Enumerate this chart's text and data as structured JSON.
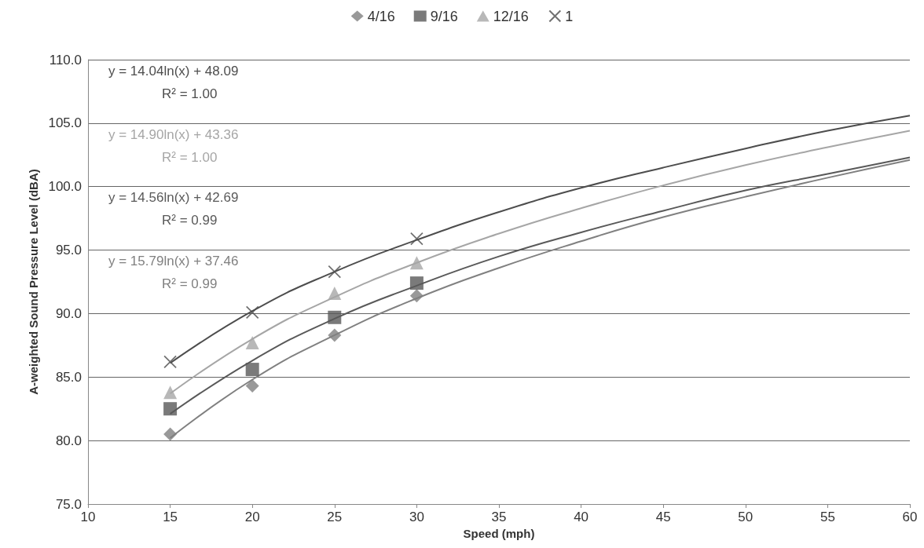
{
  "chart_data": {
    "type": "scatter",
    "xlabel": "Speed (mph)",
    "ylabel": "A-weighted Sound Pressure Level (dBA)",
    "x": [
      15,
      20,
      25,
      30
    ],
    "series": [
      {
        "name": "4/16",
        "color": "#808080",
        "marker": "diamond",
        "values": [
          80.5,
          84.3,
          88.3,
          91.4
        ]
      },
      {
        "name": "9/16",
        "color": "#595959",
        "marker": "square",
        "values": [
          82.5,
          85.6,
          89.7,
          92.4
        ]
      },
      {
        "name": "12/16",
        "color": "#a6a6a6",
        "marker": "triangle",
        "values": [
          83.8,
          87.7,
          91.6,
          94.0
        ]
      },
      {
        "name": "1",
        "color": "#4d4d4d",
        "marker": "cross",
        "values": [
          86.2,
          90.1,
          93.3,
          95.9
        ]
      },
      {
        "type": "line",
        "color": "#808080",
        "marker": "none",
        "line_style": "solid",
        "x": [
          15,
          20,
          25,
          30,
          35,
          40,
          45,
          50,
          55,
          60
        ],
        "values": [
          80.2,
          84.8,
          88.3,
          91.2,
          93.6,
          95.7,
          97.6,
          99.2,
          100.7,
          102.1
        ]
      },
      {
        "type": "line",
        "color": "#595959",
        "marker": "none",
        "line_style": "solid",
        "x": [
          15,
          20,
          25,
          30,
          35,
          40,
          45,
          50,
          55,
          60
        ],
        "values": [
          82.1,
          86.3,
          89.6,
          92.2,
          94.5,
          96.4,
          98.1,
          99.7,
          101.0,
          102.3
        ]
      },
      {
        "type": "line",
        "color": "#a6a6a6",
        "marker": "none",
        "line_style": "solid",
        "x": [
          15,
          20,
          25,
          30,
          35,
          40,
          45,
          50,
          55,
          60
        ],
        "values": [
          83.7,
          88.0,
          91.3,
          94.0,
          96.3,
          98.3,
          100.1,
          101.7,
          103.1,
          104.4
        ]
      },
      {
        "type": "line",
        "color": "#4d4d4d",
        "marker": "none",
        "line_style": "solid",
        "x": [
          15,
          20,
          25,
          30,
          35,
          40,
          45,
          50,
          55,
          60
        ],
        "values": [
          86.1,
          90.2,
          93.3,
          95.8,
          98.0,
          99.9,
          101.5,
          103.0,
          104.4,
          105.6
        ]
      }
    ],
    "annotations": [
      "y = 14.04ln(x) + 48.09",
      "R² = 1.00",
      "y = 14.90ln(x) + 43.36",
      "R² = 1.00",
      "y = 14.56ln(x) + 42.69",
      "R² = 0.99",
      "y = 15.79ln(x) + 37.46",
      "R² = 0.99"
    ],
    "xlim": [
      10,
      60
    ],
    "xticks": [
      10,
      15,
      20,
      25,
      30,
      35,
      40,
      45,
      50,
      55,
      60
    ],
    "ylim": [
      75,
      110
    ],
    "yticks": [
      {
        "value": 75,
        "label": "75.0"
      },
      {
        "value": 80,
        "label": "80.0"
      },
      {
        "value": 85,
        "label": "85.0"
      },
      {
        "value": 90,
        "label": "90.0"
      },
      {
        "value": 95,
        "label": "95.0"
      },
      {
        "value": 100,
        "label": "100.0"
      },
      {
        "value": 105,
        "label": "105.0"
      },
      {
        "value": 110,
        "label": "110.0"
      }
    ],
    "grid": "y",
    "legend": "top"
  }
}
